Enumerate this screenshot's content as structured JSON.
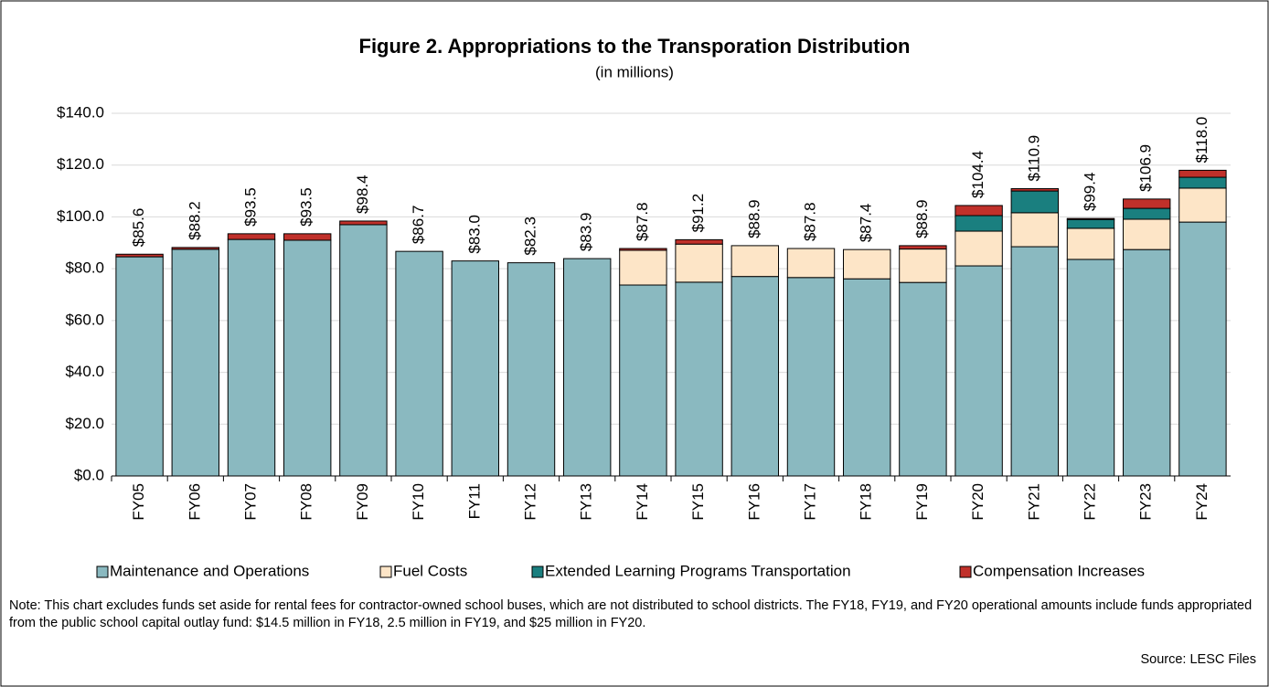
{
  "chart_data": {
    "type": "stacked_bar",
    "title": "Figure 2. Appropriations to the Transporation Distribution",
    "subtitle": "(in millions)",
    "categories": [
      "FY05",
      "FY06",
      "FY07",
      "FY08",
      "FY09",
      "FY10",
      "FY11",
      "FY12",
      "FY13",
      "FY14",
      "FY15",
      "FY16",
      "FY17",
      "FY18",
      "FY19",
      "FY20",
      "FY21",
      "FY22",
      "FY23",
      "FY24"
    ],
    "series": [
      {
        "name": "Maintenance and Operations",
        "color": "#8ab9c0",
        "values": [
          84.6,
          87.5,
          91.3,
          91.0,
          97.0,
          86.7,
          83.0,
          82.3,
          83.9,
          73.7,
          74.8,
          77.0,
          76.6,
          76.1,
          74.7,
          81.1,
          88.5,
          83.6,
          87.4,
          98.0
        ]
      },
      {
        "name": "Fuel Costs",
        "color": "#fde5c7",
        "values": [
          0,
          0,
          0,
          0,
          0,
          0,
          0,
          0,
          0,
          13.4,
          14.7,
          11.9,
          11.2,
          11.3,
          12.9,
          13.4,
          13.1,
          12.0,
          11.7,
          13.1
        ]
      },
      {
        "name": "Extended Learning Programs Transportation",
        "color": "#1a7f7f",
        "values": [
          0,
          0,
          0,
          0,
          0,
          0,
          0,
          0,
          0,
          0,
          0,
          0,
          0,
          0,
          0,
          6.0,
          8.4,
          3.4,
          4.2,
          4.2
        ]
      },
      {
        "name": "Compensation Increases",
        "color": "#c0302a",
        "values": [
          1.0,
          0.7,
          2.2,
          2.5,
          1.4,
          0,
          0,
          0,
          0,
          0.7,
          1.7,
          0,
          0,
          0,
          1.3,
          3.9,
          0.9,
          0.4,
          3.6,
          2.7
        ]
      }
    ],
    "totals": {
      "values": [
        85.6,
        88.2,
        93.5,
        93.5,
        98.4,
        86.7,
        83.0,
        82.3,
        83.9,
        87.8,
        91.2,
        88.9,
        87.8,
        87.4,
        88.9,
        104.4,
        110.9,
        99.4,
        106.9,
        118.0
      ],
      "value_labels": [
        "$85.6",
        "$88.2",
        "$93.5",
        "$93.5",
        "$98.4",
        "$86.7",
        "$83.0",
        "$82.3",
        "$83.9",
        "$87.8",
        "$91.2",
        "$88.9",
        "$87.8",
        "$87.4",
        "$88.9",
        "$104.4",
        "$110.9",
        "$99.4",
        "$106.9",
        "$118.0"
      ]
    },
    "ylim": [
      0,
      140
    ],
    "yticks": [
      {
        "value": 0,
        "label": "$0.0"
      },
      {
        "value": 20,
        "label": "$20.0"
      },
      {
        "value": 40,
        "label": "$40.0"
      },
      {
        "value": 60,
        "label": "$60.0"
      },
      {
        "value": 80,
        "label": "$80.0"
      },
      {
        "value": 100,
        "label": "$100.0"
      },
      {
        "value": 120,
        "label": "$120.0"
      },
      {
        "value": 140,
        "label": "$140.0"
      }
    ],
    "grid": true,
    "legend": "bottom",
    "note": "Note: This chart excludes funds set aside for rental fees for contractor-owned school buses, which are not distributed to school districts.  The FY18, FY19, and FY20 operational amounts include funds appropriated from the public school capital outlay fund: $14.5 million in FY18, 2.5 million in FY19, and $25 million in FY20.",
    "source": "Source: LESC Files"
  }
}
